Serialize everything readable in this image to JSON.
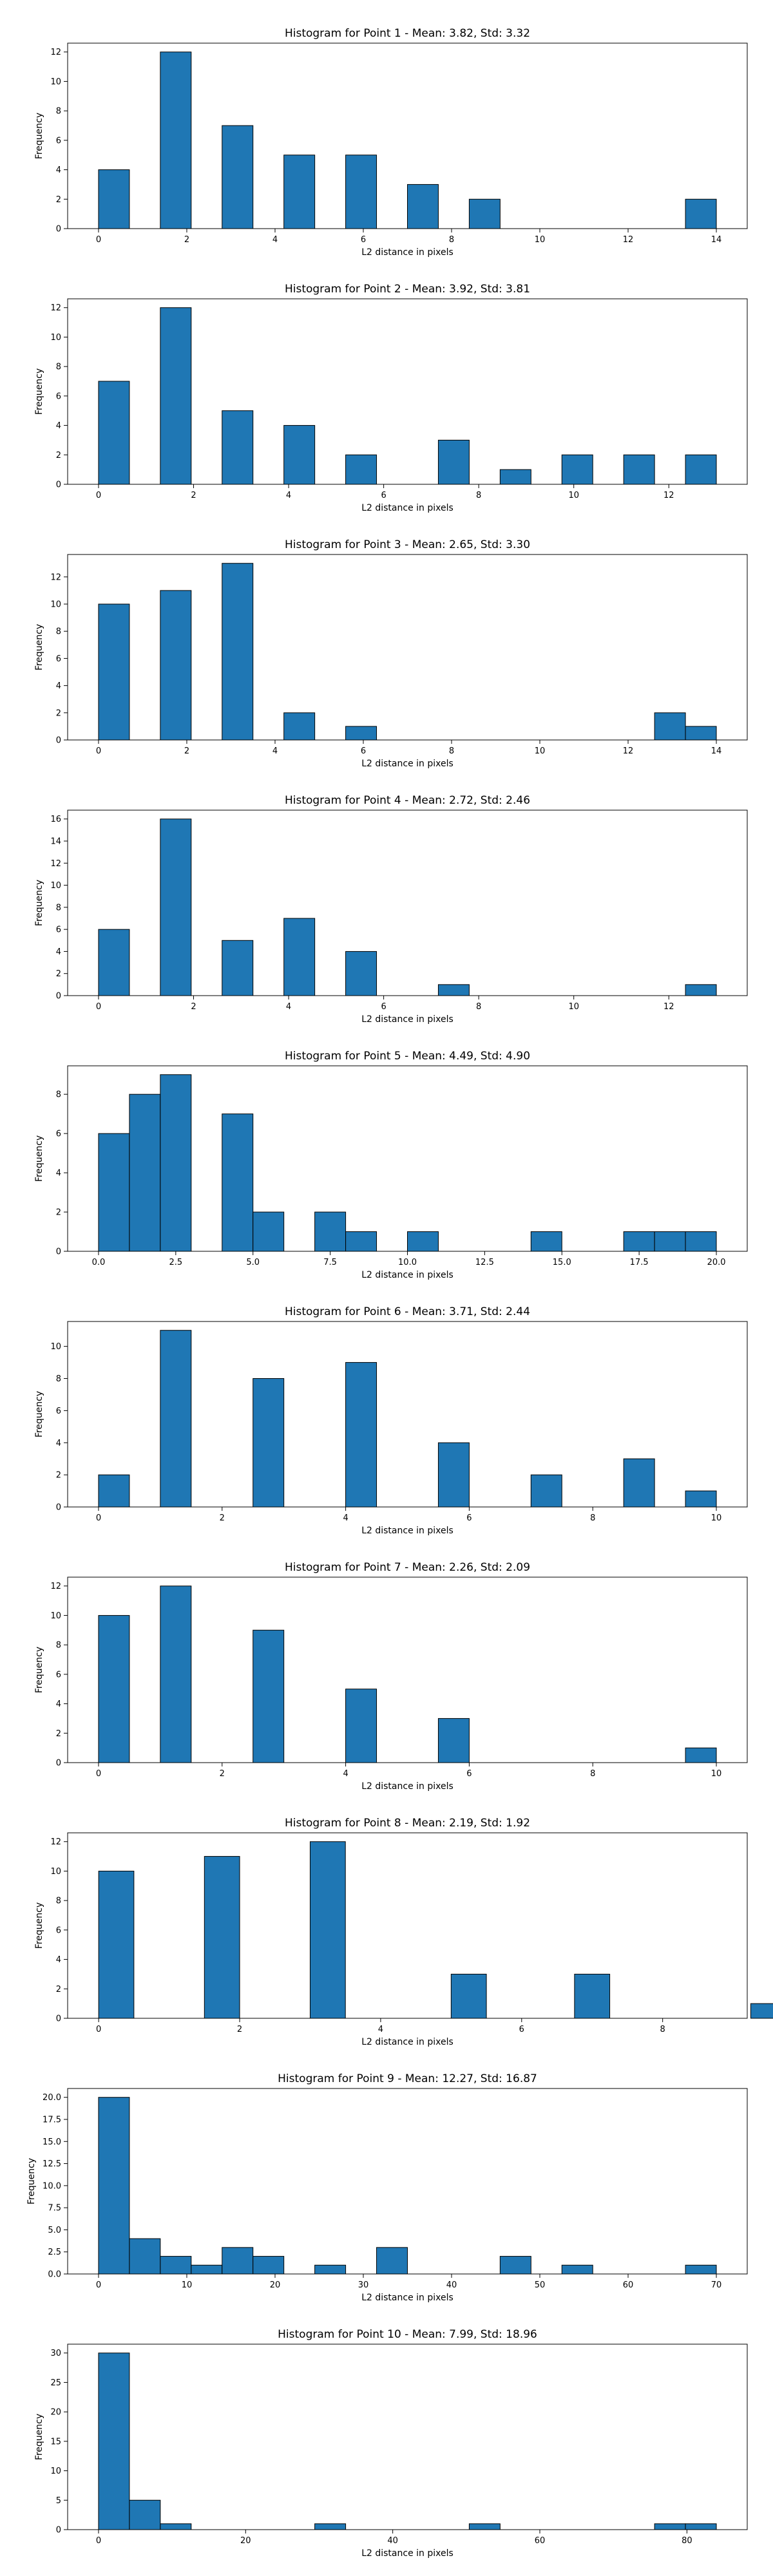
{
  "chart_data": [
    {
      "type": "bar",
      "title": "Histogram for Point 1 - Mean: 3.82, Std: 3.32",
      "xlabel": "L2 distance in pixels",
      "ylabel": "Frequency",
      "xlim": [
        -0.7,
        14.7
      ],
      "ylim": [
        0,
        12.6
      ],
      "xticks": [
        0,
        2,
        4,
        6,
        8,
        10,
        12,
        14
      ],
      "yticks": [
        0,
        2,
        4,
        6,
        8,
        10,
        12
      ],
      "bins": [
        {
          "x0": 0.0,
          "x1": 0.7,
          "count": 4
        },
        {
          "x0": 1.4,
          "x1": 2.1,
          "count": 12
        },
        {
          "x0": 2.8,
          "x1": 3.5,
          "count": 7
        },
        {
          "x0": 4.2,
          "x1": 4.9,
          "count": 5
        },
        {
          "x0": 5.6,
          "x1": 6.3,
          "count": 5
        },
        {
          "x0": 7.0,
          "x1": 7.7,
          "count": 3
        },
        {
          "x0": 8.4,
          "x1": 9.1,
          "count": 2
        },
        {
          "x0": 13.3,
          "x1": 14.0,
          "count": 2
        }
      ]
    },
    {
      "type": "bar",
      "title": "Histogram for Point 2 - Mean: 3.92, Std: 3.81",
      "xlabel": "L2 distance in pixels",
      "ylabel": "Frequency",
      "xlim": [
        -0.65,
        13.65
      ],
      "ylim": [
        0,
        12.6
      ],
      "xticks": [
        0,
        2,
        4,
        6,
        8,
        10,
        12
      ],
      "yticks": [
        0,
        2,
        4,
        6,
        8,
        10,
        12
      ],
      "bins": [
        {
          "x0": 0.0,
          "x1": 0.65,
          "count": 7
        },
        {
          "x0": 1.3,
          "x1": 1.95,
          "count": 12
        },
        {
          "x0": 2.6,
          "x1": 3.25,
          "count": 5
        },
        {
          "x0": 3.9,
          "x1": 4.55,
          "count": 4
        },
        {
          "x0": 5.2,
          "x1": 5.85,
          "count": 2
        },
        {
          "x0": 7.15,
          "x1": 7.8,
          "count": 3
        },
        {
          "x0": 8.45,
          "x1": 9.1,
          "count": 1
        },
        {
          "x0": 9.75,
          "x1": 10.4,
          "count": 2
        },
        {
          "x0": 11.05,
          "x1": 11.7,
          "count": 2
        },
        {
          "x0": 12.35,
          "x1": 13.0,
          "count": 2
        }
      ]
    },
    {
      "type": "bar",
      "title": "Histogram for Point 3 - Mean: 2.65, Std: 3.30",
      "xlabel": "L2 distance in pixels",
      "ylabel": "Frequency",
      "xlim": [
        -0.7,
        14.7
      ],
      "ylim": [
        0,
        13.65
      ],
      "xticks": [
        0,
        2,
        4,
        6,
        8,
        10,
        12,
        14
      ],
      "yticks": [
        0,
        2,
        4,
        6,
        8,
        10,
        12
      ],
      "bins": [
        {
          "x0": 0.0,
          "x1": 0.7,
          "count": 10
        },
        {
          "x0": 1.4,
          "x1": 2.1,
          "count": 11
        },
        {
          "x0": 2.8,
          "x1": 3.5,
          "count": 13
        },
        {
          "x0": 4.2,
          "x1": 4.9,
          "count": 2
        },
        {
          "x0": 5.6,
          "x1": 6.3,
          "count": 1
        },
        {
          "x0": 12.6,
          "x1": 13.3,
          "count": 2
        },
        {
          "x0": 13.3,
          "x1": 14.0,
          "count": 1
        }
      ]
    },
    {
      "type": "bar",
      "title": "Histogram for Point 4 - Mean: 2.72, Std: 2.46",
      "xlabel": "L2 distance in pixels",
      "ylabel": "Frequency",
      "xlim": [
        -0.65,
        13.65
      ],
      "ylim": [
        0,
        16.8
      ],
      "xticks": [
        0,
        2,
        4,
        6,
        8,
        10,
        12
      ],
      "yticks": [
        0,
        2,
        4,
        6,
        8,
        10,
        12,
        14,
        16
      ],
      "bins": [
        {
          "x0": 0.0,
          "x1": 0.65,
          "count": 6
        },
        {
          "x0": 1.3,
          "x1": 1.95,
          "count": 16
        },
        {
          "x0": 2.6,
          "x1": 3.25,
          "count": 5
        },
        {
          "x0": 3.9,
          "x1": 4.55,
          "count": 7
        },
        {
          "x0": 5.2,
          "x1": 5.85,
          "count": 4
        },
        {
          "x0": 7.15,
          "x1": 7.8,
          "count": 1
        },
        {
          "x0": 12.35,
          "x1": 13.0,
          "count": 1
        }
      ]
    },
    {
      "type": "bar",
      "title": "Histogram for Point 5 - Mean: 4.49, Std: 4.90",
      "xlabel": "L2 distance in pixels",
      "ylabel": "Frequency",
      "xlim": [
        -1.0,
        21.0
      ],
      "ylim": [
        0,
        9.45
      ],
      "xticks": [
        0.0,
        2.5,
        5.0,
        7.5,
        10.0,
        12.5,
        15.0,
        17.5,
        20.0
      ],
      "xtick_labels": [
        "0.0",
        "2.5",
        "5.0",
        "7.5",
        "10.0",
        "12.5",
        "15.0",
        "17.5",
        "20.0"
      ],
      "yticks": [
        0,
        2,
        4,
        6,
        8
      ],
      "bins": [
        {
          "x0": 0.0,
          "x1": 1.0,
          "count": 6
        },
        {
          "x0": 1.0,
          "x1": 2.0,
          "count": 8
        },
        {
          "x0": 2.0,
          "x1": 3.0,
          "count": 9
        },
        {
          "x0": 4.0,
          "x1": 5.0,
          "count": 7
        },
        {
          "x0": 5.0,
          "x1": 6.0,
          "count": 2
        },
        {
          "x0": 7.0,
          "x1": 8.0,
          "count": 2
        },
        {
          "x0": 8.0,
          "x1": 9.0,
          "count": 1
        },
        {
          "x0": 10.0,
          "x1": 11.0,
          "count": 1
        },
        {
          "x0": 14.0,
          "x1": 15.0,
          "count": 1
        },
        {
          "x0": 17.0,
          "x1": 18.0,
          "count": 1
        },
        {
          "x0": 18.0,
          "x1": 19.0,
          "count": 1
        },
        {
          "x0": 19.0,
          "x1": 20.0,
          "count": 1
        }
      ]
    },
    {
      "type": "bar",
      "title": "Histogram for Point 6 - Mean: 3.71, Std: 2.44",
      "xlabel": "L2 distance in pixels",
      "ylabel": "Frequency",
      "xlim": [
        -0.5,
        10.5
      ],
      "ylim": [
        0,
        11.55
      ],
      "xticks": [
        0,
        2,
        4,
        6,
        8,
        10
      ],
      "yticks": [
        0,
        2,
        4,
        6,
        8,
        10
      ],
      "bins": [
        {
          "x0": 0.0,
          "x1": 0.5,
          "count": 2
        },
        {
          "x0": 1.0,
          "x1": 1.5,
          "count": 11
        },
        {
          "x0": 2.5,
          "x1": 3.0,
          "count": 8
        },
        {
          "x0": 4.0,
          "x1": 4.5,
          "count": 9
        },
        {
          "x0": 5.5,
          "x1": 6.0,
          "count": 4
        },
        {
          "x0": 7.0,
          "x1": 7.5,
          "count": 2
        },
        {
          "x0": 8.5,
          "x1": 9.0,
          "count": 3
        },
        {
          "x0": 9.5,
          "x1": 10.0,
          "count": 1
        }
      ]
    },
    {
      "type": "bar",
      "title": "Histogram for Point 7 - Mean: 2.26, Std: 2.09",
      "xlabel": "L2 distance in pixels",
      "ylabel": "Frequency",
      "xlim": [
        -0.5,
        10.5
      ],
      "ylim": [
        0,
        12.6
      ],
      "xticks": [
        0,
        2,
        4,
        6,
        8,
        10
      ],
      "yticks": [
        0,
        2,
        4,
        6,
        8,
        10,
        12
      ],
      "bins": [
        {
          "x0": 0.0,
          "x1": 0.5,
          "count": 10
        },
        {
          "x0": 1.0,
          "x1": 1.5,
          "count": 12
        },
        {
          "x0": 2.5,
          "x1": 3.0,
          "count": 9
        },
        {
          "x0": 4.0,
          "x1": 4.5,
          "count": 5
        },
        {
          "x0": 5.5,
          "x1": 6.0,
          "count": 3
        },
        {
          "x0": 9.5,
          "x1": 10.0,
          "count": 1
        }
      ]
    },
    {
      "type": "bar",
      "title": "Histogram for Point 8 - Mean: 2.19, Std: 1.92",
      "xlabel": "L2 distance in pixels",
      "ylabel": "Frequency",
      "xlim": [
        -0.44,
        9.2
      ],
      "ylim": [
        0,
        12.6
      ],
      "xticks": [
        0,
        2,
        4,
        6,
        8
      ],
      "yticks": [
        0,
        2,
        4,
        6,
        8,
        10,
        12
      ],
      "bins": [
        {
          "x0": 0.0,
          "x1": 0.5,
          "count": 10
        },
        {
          "x0": 1.5,
          "x1": 2.0,
          "count": 11
        },
        {
          "x0": 3.0,
          "x1": 3.5,
          "count": 12
        },
        {
          "x0": 5.0,
          "x1": 5.5,
          "count": 3
        },
        {
          "x0": 6.75,
          "x1": 7.25,
          "count": 3
        },
        {
          "x0": 9.25,
          "x1": 9.75,
          "count": 1
        }
      ]
    },
    {
      "type": "bar",
      "title": "Histogram for Point 9 - Mean: 12.27, Std: 16.87",
      "xlabel": "L2 distance in pixels",
      "ylabel": "Frequency",
      "xlim": [
        -3.5,
        73.5
      ],
      "ylim": [
        0,
        21
      ],
      "xticks": [
        0,
        10,
        20,
        30,
        40,
        50,
        60,
        70
      ],
      "yticks": [
        0.0,
        2.5,
        5.0,
        7.5,
        10.0,
        12.5,
        15.0,
        17.5,
        20.0
      ],
      "ytick_labels": [
        "0.0",
        "2.5",
        "5.0",
        "7.5",
        "10.0",
        "12.5",
        "15.0",
        "17.5",
        "20.0"
      ],
      "bins": [
        {
          "x0": 0.0,
          "x1": 3.5,
          "count": 20
        },
        {
          "x0": 3.5,
          "x1": 7.0,
          "count": 4
        },
        {
          "x0": 7.0,
          "x1": 10.5,
          "count": 2
        },
        {
          "x0": 10.5,
          "x1": 14.0,
          "count": 1
        },
        {
          "x0": 14.0,
          "x1": 17.5,
          "count": 3
        },
        {
          "x0": 17.5,
          "x1": 21.0,
          "count": 2
        },
        {
          "x0": 24.5,
          "x1": 28.0,
          "count": 1
        },
        {
          "x0": 31.5,
          "x1": 35.0,
          "count": 3
        },
        {
          "x0": 45.5,
          "x1": 49.0,
          "count": 2
        },
        {
          "x0": 52.5,
          "x1": 56.0,
          "count": 1
        },
        {
          "x0": 66.5,
          "x1": 70.0,
          "count": 1
        }
      ]
    },
    {
      "type": "bar",
      "title": "Histogram for Point 10 - Mean: 7.99, Std: 18.96",
      "xlabel": "L2 distance in pixels",
      "ylabel": "Frequency",
      "xlim": [
        -4.2,
        88.2
      ],
      "ylim": [
        0,
        31.5
      ],
      "xticks": [
        0,
        20,
        40,
        60,
        80
      ],
      "yticks": [
        0,
        5,
        10,
        15,
        20,
        25,
        30
      ],
      "bins": [
        {
          "x0": 0.0,
          "x1": 4.2,
          "count": 30
        },
        {
          "x0": 4.2,
          "x1": 8.4,
          "count": 5
        },
        {
          "x0": 8.4,
          "x1": 12.6,
          "count": 1
        },
        {
          "x0": 29.4,
          "x1": 33.6,
          "count": 1
        },
        {
          "x0": 50.4,
          "x1": 54.6,
          "count": 1
        },
        {
          "x0": 75.6,
          "x1": 79.8,
          "count": 1
        },
        {
          "x0": 79.8,
          "x1": 84.0,
          "count": 1
        }
      ]
    }
  ],
  "colors": {
    "bar_fill": "#1f77b4",
    "bar_edge": "#000000",
    "axes": "#000000",
    "background": "#ffffff"
  }
}
